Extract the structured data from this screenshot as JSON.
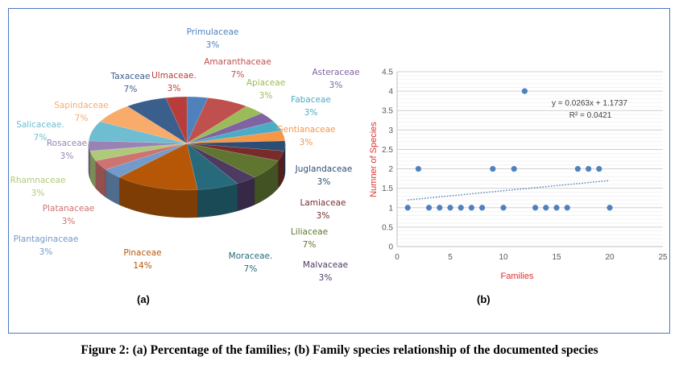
{
  "caption": "Figure 2: (a) Percentage of the families; (b) Family species relationship of the documented species",
  "chart_data": [
    {
      "type": "pie",
      "style": "3d",
      "panel_label": "(a)",
      "slices": [
        {
          "label": "Primulaceae",
          "value": 1,
          "pct_label": "3%",
          "color": "#4f81bd"
        },
        {
          "label": "Amaranthaceae",
          "value": 2,
          "pct_label": "7%",
          "color": "#c0504d"
        },
        {
          "label": "Apiaceae",
          "value": 1,
          "pct_label": "3%",
          "color": "#9bbb59"
        },
        {
          "label": "Asteraceae",
          "value": 1,
          "pct_label": "3%",
          "color": "#8064a2"
        },
        {
          "label": "Fabaceae",
          "value": 1,
          "pct_label": "3%",
          "color": "#4bacc6"
        },
        {
          "label": "Gentianaceae",
          "value": 1,
          "pct_label": "3%",
          "color": "#f79646"
        },
        {
          "label": "Juglandaceae",
          "value": 1,
          "pct_label": "3%",
          "color": "#2c4d75"
        },
        {
          "label": "Lamiaceae",
          "value": 1,
          "pct_label": "3%",
          "color": "#772c2a"
        },
        {
          "label": "Liliaceae",
          "value": 2,
          "pct_label": "7%",
          "color": "#5f7530"
        },
        {
          "label": "Malvaceae",
          "value": 1,
          "pct_label": "3%",
          "color": "#4d3b62"
        },
        {
          "label": "Moraceae.",
          "value": 2,
          "pct_label": "7%",
          "color": "#276a7c"
        },
        {
          "label": "Pinaceae",
          "value": 4,
          "pct_label": "14%",
          "color": "#b65708"
        },
        {
          "label": "Plantaginaceae",
          "value": 1,
          "pct_label": "3%",
          "color": "#729aca"
        },
        {
          "label": "Platanaceae",
          "value": 1,
          "pct_label": "3%",
          "color": "#cd7371"
        },
        {
          "label": "Rhamnaceae",
          "value": 1,
          "pct_label": "3%",
          "color": "#afc97a"
        },
        {
          "label": "Rosaceae",
          "value": 1,
          "pct_label": "3%",
          "color": "#9983b5"
        },
        {
          "label": "Salicaceae.",
          "value": 2,
          "pct_label": "7%",
          "color": "#6fbdd1"
        },
        {
          "label": "Sapindaceae",
          "value": 2,
          "pct_label": "7%",
          "color": "#f9ab6b"
        },
        {
          "label": "Taxaceae",
          "value": 2,
          "pct_label": "7%",
          "color": "#3a5f8d"
        },
        {
          "label": "Ulmaceae.",
          "value": 1,
          "pct_label": "3%",
          "color": "#b83d3a"
        }
      ]
    },
    {
      "type": "scatter",
      "panel_label": "(b)",
      "xlabel": "Families",
      "ylabel": "Numner  of Species",
      "xlim": [
        0,
        25
      ],
      "ylim": [
        0,
        4.5
      ],
      "xticks": [
        "0",
        "5",
        "10",
        "15",
        "20",
        "25"
      ],
      "yticks": [
        "0",
        "0.5",
        "1",
        "1.5",
        "2",
        "2.5",
        "3",
        "3.5",
        "4",
        "4.5"
      ],
      "grid": true,
      "point_color": "#4f81bd",
      "label_color": "#e03030",
      "points": [
        [
          1,
          1
        ],
        [
          2,
          2
        ],
        [
          3,
          1
        ],
        [
          4,
          1
        ],
        [
          5,
          1
        ],
        [
          6,
          1
        ],
        [
          7,
          1
        ],
        [
          8,
          1
        ],
        [
          9,
          2
        ],
        [
          10,
          1
        ],
        [
          11,
          2
        ],
        [
          12,
          4
        ],
        [
          13,
          1
        ],
        [
          14,
          1
        ],
        [
          15,
          1
        ],
        [
          16,
          1
        ],
        [
          17,
          2
        ],
        [
          18,
          2
        ],
        [
          19,
          2
        ],
        [
          20,
          1
        ]
      ],
      "trendline": {
        "type": "linear",
        "slope": 0.0263,
        "intercept": 1.1737,
        "x_range": [
          1,
          20
        ],
        "equation": "y = 0.0263x + 1.1737",
        "r2": "R² = 0.0421"
      }
    }
  ]
}
